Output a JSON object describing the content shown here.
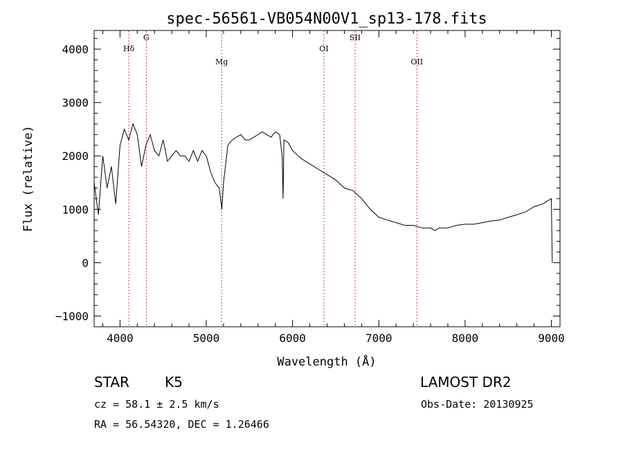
{
  "chart_data": {
    "type": "line",
    "title": "spec-56561-VB054N00V1_sp13-178.fits",
    "xlabel": "Wavelength (Å)",
    "ylabel": "Flux (relative)",
    "xlim": [
      3700,
      9100
    ],
    "ylim": [
      -1200,
      4350
    ],
    "xticks": [
      4000,
      5000,
      6000,
      7000,
      8000,
      9000
    ],
    "yticks": [
      -1000,
      0,
      1000,
      2000,
      3000,
      4000
    ],
    "grid": false,
    "line_color": "#000000",
    "marker_color": "#cc0000",
    "series": [
      {
        "x": [
          3700,
          3750,
          3800,
          3850,
          3900,
          3950,
          4000,
          4050,
          4100,
          4150,
          4200,
          4250,
          4300,
          4350,
          4400,
          4450,
          4500,
          4550,
          4600,
          4650,
          4700,
          4750,
          4800,
          4850,
          4900,
          4950,
          5000,
          5050,
          5100,
          5150,
          5180,
          5200,
          5250,
          5300,
          5350,
          5400,
          5450,
          5500,
          5550,
          5600,
          5650,
          5700,
          5750,
          5800,
          5850,
          5880,
          5890,
          5900,
          5950,
          6000,
          6100,
          6200,
          6300,
          6400,
          6500,
          6600,
          6700,
          6800,
          6900,
          7000,
          7100,
          7200,
          7300,
          7400,
          7500,
          7600,
          7650,
          7700,
          7800,
          7900,
          8000,
          8100,
          8200,
          8300,
          8400,
          8500,
          8600,
          8700,
          8800,
          8900,
          9000,
          9010
        ],
        "y": [
          1500,
          900,
          2000,
          1400,
          1800,
          1100,
          2200,
          2500,
          2300,
          2600,
          2400,
          1800,
          2200,
          2400,
          2100,
          2000,
          2300,
          1900,
          2000,
          2100,
          2000,
          2000,
          1900,
          2100,
          1900,
          2100,
          2000,
          1700,
          1500,
          1400,
          1000,
          1500,
          2200,
          2300,
          2350,
          2400,
          2300,
          2300,
          2350,
          2400,
          2450,
          2400,
          2350,
          2450,
          2400,
          2000,
          1200,
          2300,
          2250,
          2100,
          1950,
          1850,
          1750,
          1650,
          1550,
          1400,
          1350,
          1200,
          1000,
          850,
          800,
          750,
          700,
          700,
          650,
          650,
          600,
          650,
          650,
          700,
          720,
          720,
          750,
          780,
          800,
          850,
          900,
          950,
          1050,
          1100,
          1200,
          0
        ]
      }
    ],
    "line_markers": [
      {
        "label": "Hδ",
        "x": 4102
      },
      {
        "label": "G",
        "x": 4305
      },
      {
        "label": "Mg",
        "x": 5178
      },
      {
        "label": "OI",
        "x": 6363
      },
      {
        "label": "SII",
        "x": 6725
      },
      {
        "label": "OII",
        "x": 7441
      }
    ]
  },
  "info": {
    "class_label": "STAR",
    "subclass_label": "K5",
    "survey": "LAMOST DR2",
    "cz": "cz = 58.1 ± 2.5 km/s",
    "obs_date": "Obs-Date: 20130925",
    "coords": "RA =  56.54320, DEC =   1.26466"
  }
}
